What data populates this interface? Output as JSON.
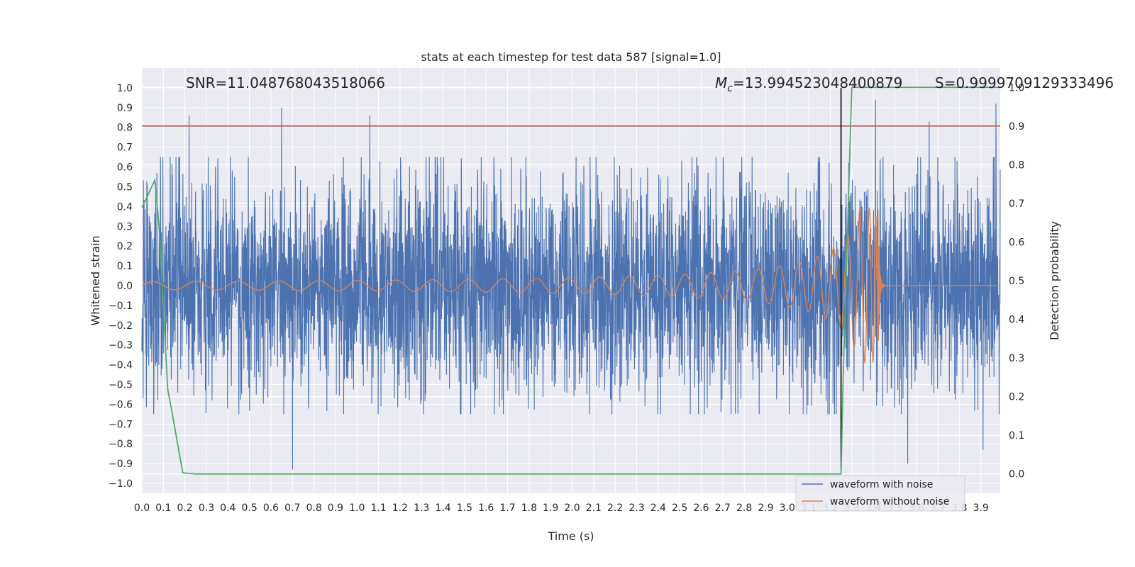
{
  "chart_data": {
    "type": "line",
    "title": "stats at each timestep for test data 587 [signal=1.0]",
    "xlabel": "Time (s)",
    "ylabel_left": "Whitened strain",
    "ylabel_right": "Detection probability",
    "xlim": [
      0.0,
      3.99
    ],
    "ylim_left": [
      -1.05,
      1.1
    ],
    "ylim_right": [
      -0.05,
      1.05
    ],
    "x_ticks": [
      "0.0",
      "0.1",
      "0.2",
      "0.3",
      "0.4",
      "0.5",
      "0.6",
      "0.7",
      "0.8",
      "0.9",
      "1.0",
      "1.1",
      "1.2",
      "1.3",
      "1.4",
      "1.5",
      "1.6",
      "1.7",
      "1.8",
      "1.9",
      "2.0",
      "2.1",
      "2.2",
      "2.3",
      "2.4",
      "2.5",
      "2.6",
      "2.7",
      "2.8",
      "2.9",
      "3.0",
      "3.1",
      "3.2",
      "3.3",
      "3.4",
      "3.5",
      "3.6",
      "3.7",
      "3.8",
      "3.9"
    ],
    "y_ticks_left": [
      "1.0",
      "0.9",
      "0.8",
      "0.7",
      "0.6",
      "0.5",
      "0.4",
      "0.3",
      "0.2",
      "0.1",
      "0.0",
      "−0.1",
      "−0.2",
      "−0.3",
      "−0.4",
      "−0.5",
      "−0.6",
      "−0.7",
      "−0.8",
      "−0.9",
      "−1.0"
    ],
    "y_ticks_right": [
      "1.0",
      "0.9",
      "0.8",
      "0.7",
      "0.6",
      "0.5",
      "0.4",
      "0.3",
      "0.2",
      "0.1",
      "0.0"
    ],
    "annotations": {
      "snr": "SNR=11.048768043518066",
      "mc_symbol": "M",
      "mc_sub": "c",
      "mc_value": "=13.994523048400879",
      "s": "S=0.9999709129333496"
    },
    "threshold": {
      "value": 0.9,
      "axis": "right",
      "color": "#c44e52"
    },
    "event_marker": {
      "x": 3.25,
      "y_from": -0.93,
      "y_to": 1.0,
      "color": "#000000"
    },
    "series": [
      {
        "name": "waveform with noise",
        "color": "#4c72b0",
        "axis": "left",
        "kind": "noise",
        "amplitude_max": 0.65,
        "peaks": [
          {
            "x": 0.22,
            "y": 0.86
          },
          {
            "x": 0.65,
            "y": 0.9
          },
          {
            "x": 1.06,
            "y": 0.86
          },
          {
            "x": 3.41,
            "y": 0.94
          },
          {
            "x": 3.66,
            "y": 0.83
          },
          {
            "x": 3.97,
            "y": 0.92
          },
          {
            "x": 0.7,
            "y": -0.93
          },
          {
            "x": 3.56,
            "y": -0.9
          },
          {
            "x": 3.91,
            "y": -0.83
          }
        ]
      },
      {
        "name": "waveform without noise",
        "color": "#dd8452",
        "axis": "left",
        "kind": "chirp",
        "merger_time": 3.42,
        "peak_positive": 0.39,
        "peak_negative": -0.54,
        "start_amplitude": 0.02
      },
      {
        "name": "detection probability",
        "color": "#55a868",
        "axis": "right",
        "kind": "line",
        "x": [
          0.0,
          0.01,
          0.06,
          0.08,
          0.12,
          0.14,
          0.19,
          0.25,
          1.0,
          2.0,
          3.0,
          3.25,
          3.26,
          3.3,
          3.35,
          3.5,
          3.99
        ],
        "y": [
          0.69,
          0.7,
          0.76,
          0.64,
          0.22,
          0.16,
          0.003,
          0.0,
          0.0,
          0.0,
          0.0,
          0.0,
          0.25,
          1.0,
          1.0,
          1.0,
          1.0
        ]
      }
    ],
    "legend": {
      "location": "lower-right",
      "entries": [
        {
          "label": "waveform with noise",
          "color": "#4c72b0"
        },
        {
          "label": "waveform without noise",
          "color": "#dd8452"
        }
      ]
    }
  }
}
